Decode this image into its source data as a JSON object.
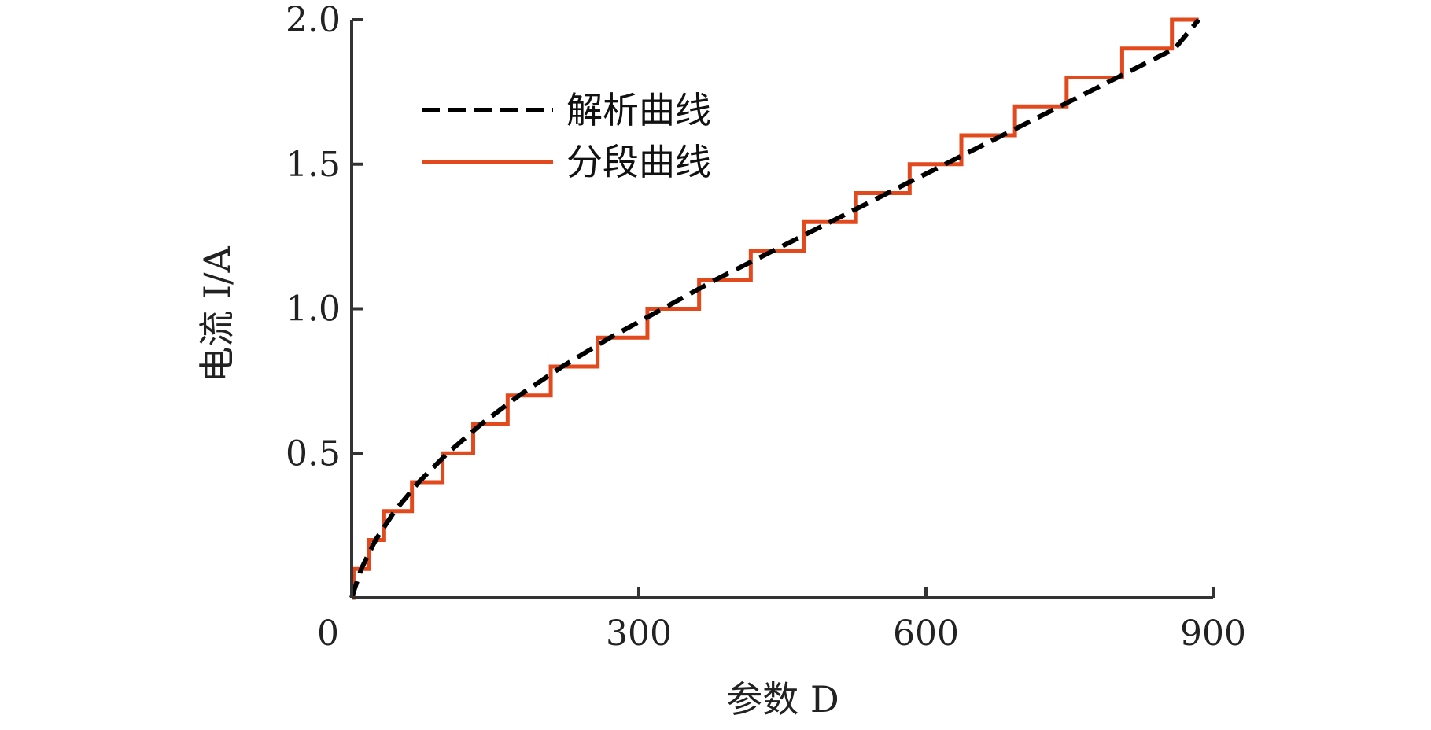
{
  "chart_data": {
    "type": "line",
    "title": "",
    "xlabel": "参数 D",
    "ylabel": "电流 I/A",
    "xlim": [
      0,
      900
    ],
    "ylim": [
      0,
      2.0
    ],
    "x_ticks": [
      0,
      300,
      600,
      900
    ],
    "x_tick_labels": [
      "0",
      "300",
      "600",
      "900"
    ],
    "y_ticks": [
      0.5,
      1.0,
      1.5,
      2.0
    ],
    "y_tick_labels": [
      "0.5",
      "1.0",
      "1.5",
      "2.0"
    ],
    "origin_label": "0",
    "grid": false,
    "legend_position": "top-left",
    "series": [
      {
        "name": "解析曲线",
        "style": "dashed",
        "color": "#000000",
        "x": [
          0,
          10,
          25,
          45,
          70,
          100,
          135,
          175,
          220,
          270,
          325,
          380,
          440,
          500,
          560,
          620,
          680,
          740,
          800,
          860,
          885
        ],
        "y": [
          0,
          0.1,
          0.2,
          0.3,
          0.4,
          0.5,
          0.6,
          0.7,
          0.8,
          0.9,
          1.0,
          1.1,
          1.2,
          1.3,
          1.4,
          1.5,
          1.6,
          1.7,
          1.8,
          1.9,
          2.0
        ]
      },
      {
        "name": "分段曲线",
        "style": "step",
        "color": "#e24a1e",
        "step_x": [
          0,
          2,
          18,
          34,
          63,
          95,
          127,
          163,
          208,
          257,
          309,
          363,
          417,
          473,
          527,
          583,
          637,
          693,
          747,
          805,
          857,
          885
        ],
        "step_y": [
          0,
          0.1,
          0.2,
          0.3,
          0.4,
          0.5,
          0.6,
          0.7,
          0.8,
          0.9,
          1.0,
          1.1,
          1.2,
          1.3,
          1.4,
          1.5,
          1.6,
          1.7,
          1.8,
          1.9,
          2.0,
          2.0
        ]
      }
    ]
  }
}
